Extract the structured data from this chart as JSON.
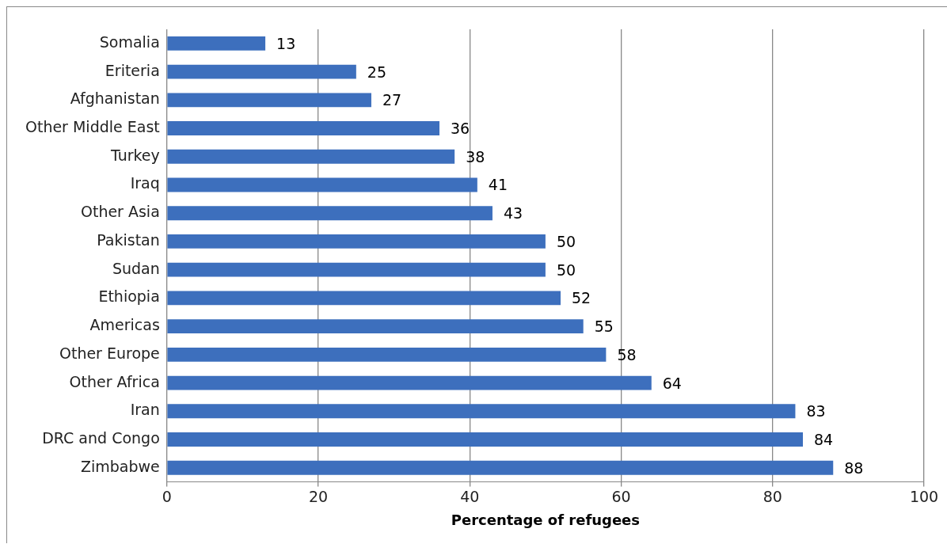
{
  "chart_data": {
    "type": "bar",
    "orientation": "horizontal",
    "xlabel": "Percentage of refugees",
    "categories": [
      "Somalia",
      "Eriteria",
      "Afghanistan",
      "Other Middle East",
      "Turkey",
      "Iraq",
      "Other Asia",
      "Pakistan",
      "Sudan",
      "Ethiopia",
      "Americas",
      "Other Europe",
      "Other Africa",
      "Iran",
      "DRC and Congo",
      "Zimbabwe"
    ],
    "values": [
      13,
      25,
      27,
      36,
      38,
      41,
      43,
      50,
      50,
      52,
      55,
      58,
      64,
      83,
      84,
      88
    ],
    "color": "#3d6fbd",
    "xlim": [
      0,
      100
    ],
    "xticks": [
      0,
      20,
      40,
      60,
      80,
      100
    ],
    "grid": "x",
    "data_labels": true,
    "legend": false
  }
}
